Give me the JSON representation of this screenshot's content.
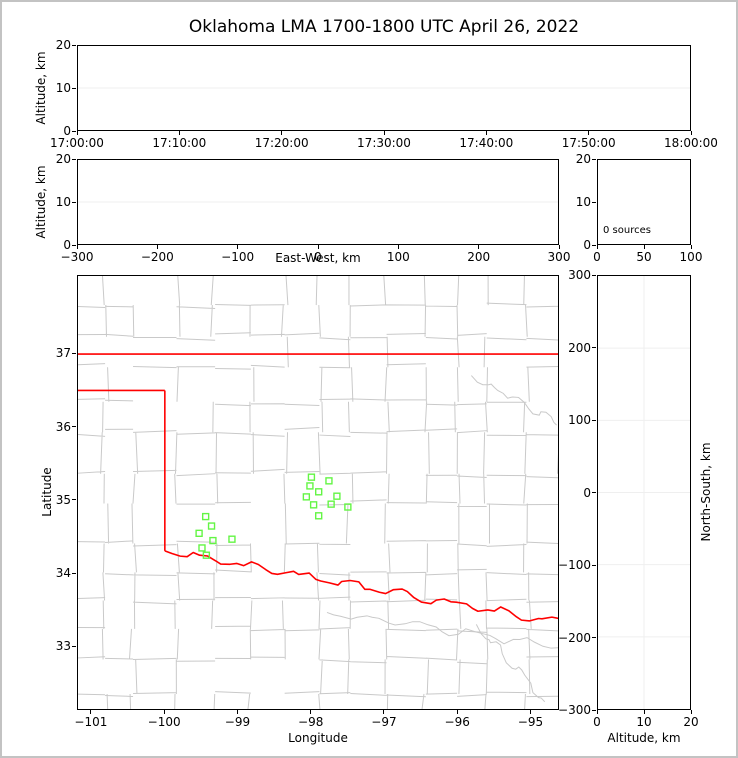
{
  "title": "Oklahoma LMA 1700-1800 UTC April 26, 2022",
  "colors": {
    "background": "#ffffff",
    "frame_border": "#c3c3c3",
    "spine": "#000000",
    "grid_line": "#efefef",
    "county_line": "#c9c9c9",
    "state_border": "#ff0000",
    "station_marker": "#63f544",
    "text": "#000000"
  },
  "chart_data": [
    {
      "id": "time-height-panel",
      "type": "scatter",
      "xlabel": "",
      "ylabel": "Altitude, km",
      "xlim": [
        0,
        3600
      ],
      "ylim": [
        0,
        20
      ],
      "xtick_vals": [
        0,
        600,
        1200,
        1800,
        2400,
        3000,
        3600
      ],
      "xtick_labels": [
        "17:00:00",
        "17:10:00",
        "17:20:00",
        "17:30:00",
        "17:40:00",
        "17:50:00",
        "18:00:00"
      ],
      "ytick_vals": [
        0,
        10,
        20
      ],
      "ytick_labels": [
        "0",
        "10",
        "20"
      ],
      "xgrid_vals": [],
      "ygrid_vals": [
        10
      ],
      "points": []
    },
    {
      "id": "east-west-height-panel",
      "type": "scatter",
      "xlabel": "East-West, km",
      "ylabel": "Altitude, km",
      "xlim": [
        -300,
        300
      ],
      "ylim": [
        0,
        20
      ],
      "xtick_vals": [
        -300,
        -200,
        -100,
        0,
        100,
        200,
        300
      ],
      "xtick_labels": [
        "−300",
        "−200",
        "−100",
        "0",
        "100",
        "200",
        "300"
      ],
      "ytick_vals": [
        0,
        10,
        20
      ],
      "ytick_labels": [
        "0",
        "10",
        "20"
      ],
      "xgrid_vals": [],
      "ygrid_vals": [
        10
      ],
      "points": []
    },
    {
      "id": "source-count-panel",
      "type": "line",
      "xlabel": "",
      "ylabel": "",
      "annotation": "0 sources",
      "xlim": [
        0,
        100
      ],
      "ylim": [
        0,
        20
      ],
      "xtick_vals": [
        0,
        50,
        100
      ],
      "xtick_labels": [
        "0",
        "50",
        "100"
      ],
      "ytick_vals": [
        0,
        10,
        20
      ],
      "ytick_labels": [
        "0",
        "10",
        "20"
      ],
      "xgrid_vals": [],
      "ygrid_vals": [],
      "points": []
    },
    {
      "id": "plan-view-map-panel",
      "type": "scatter",
      "xlabel": "Longitude",
      "ylabel": "Latitude",
      "xlim": [
        -101.19,
        -94.61
      ],
      "ylim": [
        32.13,
        38.07
      ],
      "xtick_vals": [
        -101,
        -100,
        -99,
        -98,
        -97,
        -96,
        -95
      ],
      "xtick_labels": [
        "−101",
        "−100",
        "−99",
        "−98",
        "−97",
        "−96",
        "−95"
      ],
      "ytick_vals": [
        33,
        34,
        35,
        36,
        37
      ],
      "ytick_labels": [
        "33",
        "34",
        "35",
        "36",
        "37"
      ],
      "xgrid_vals": [],
      "ygrid_vals": [],
      "state_border": {
        "north_lat": 37.0,
        "panhandle_south_lat": 36.5,
        "west_lon": -100.0,
        "river_start": [
          -100.0,
          34.3
        ],
        "river_end": [
          -94.61,
          33.32
        ]
      },
      "stations": [
        {
          "lon": -99.44,
          "lat": 34.77
        },
        {
          "lon": -99.36,
          "lat": 34.64
        },
        {
          "lon": -99.53,
          "lat": 34.54
        },
        {
          "lon": -99.34,
          "lat": 34.44
        },
        {
          "lon": -99.49,
          "lat": 34.34
        },
        {
          "lon": -99.08,
          "lat": 34.46
        },
        {
          "lon": -99.43,
          "lat": 34.24
        },
        {
          "lon": -97.99,
          "lat": 35.31
        },
        {
          "lon": -97.75,
          "lat": 35.26
        },
        {
          "lon": -98.01,
          "lat": 35.19
        },
        {
          "lon": -97.89,
          "lat": 35.11
        },
        {
          "lon": -98.06,
          "lat": 35.04
        },
        {
          "lon": -97.96,
          "lat": 34.93
        },
        {
          "lon": -97.72,
          "lat": 34.94
        },
        {
          "lon": -97.64,
          "lat": 35.05
        },
        {
          "lon": -97.49,
          "lat": 34.9
        },
        {
          "lon": -97.89,
          "lat": 34.78
        }
      ]
    },
    {
      "id": "north-south-height-panel",
      "type": "scatter",
      "xlabel": "Altitude, km",
      "ylabel": "North-South, km",
      "xlim": [
        0,
        20
      ],
      "ylim": [
        -300,
        300
      ],
      "xtick_vals": [
        0,
        10,
        20
      ],
      "xtick_labels": [
        "0",
        "10",
        "20"
      ],
      "ytick_vals": [
        -300,
        -200,
        -100,
        0,
        100,
        200,
        300
      ],
      "ytick_labels": [
        "−300",
        "−200",
        "−100",
        "0",
        "100",
        "200",
        "300"
      ],
      "xgrid_vals": [
        10
      ],
      "ygrid_vals": [
        -200,
        -100,
        0,
        100,
        200
      ],
      "points": []
    }
  ]
}
